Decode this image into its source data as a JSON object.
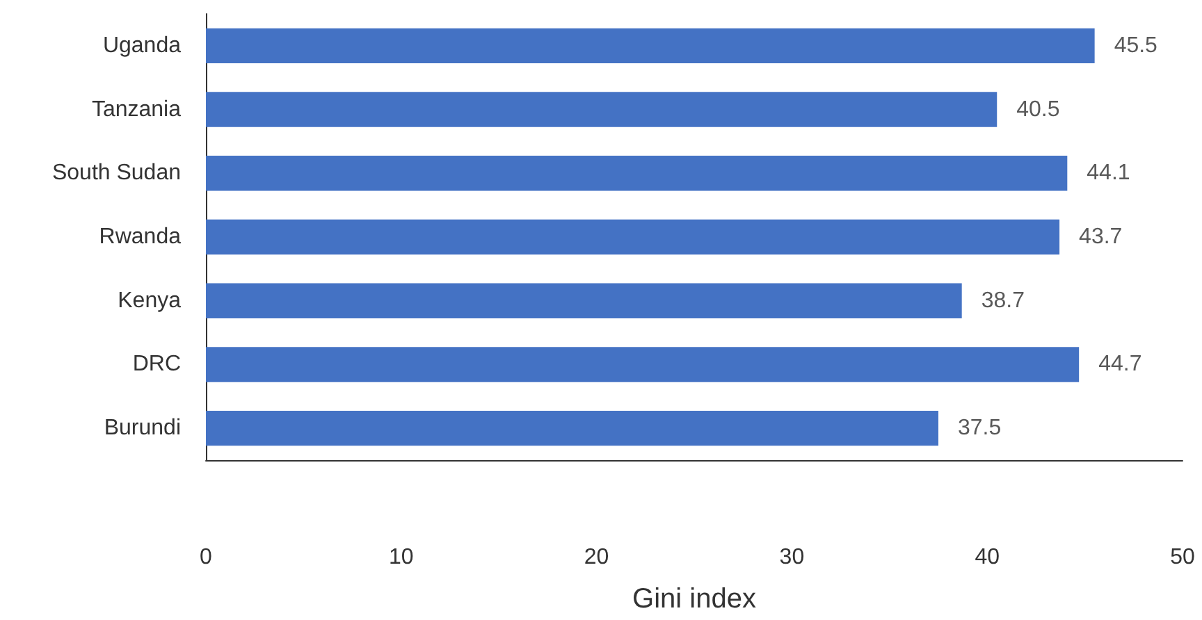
{
  "chart_data": {
    "type": "bar",
    "orientation": "horizontal",
    "xlabel": "Gini index",
    "categories": [
      "Uganda",
      "Tanzania",
      "South Sudan",
      "Rwanda",
      "Kenya",
      "DRC",
      "Burundi"
    ],
    "values": [
      45.5,
      40.5,
      44.1,
      43.7,
      38.7,
      44.7,
      37.5
    ],
    "color": "#4472c4",
    "xlim": [
      0,
      50
    ],
    "xticks": [
      0,
      10,
      20,
      30,
      40,
      50
    ],
    "grid": false,
    "data_labels": true
  }
}
